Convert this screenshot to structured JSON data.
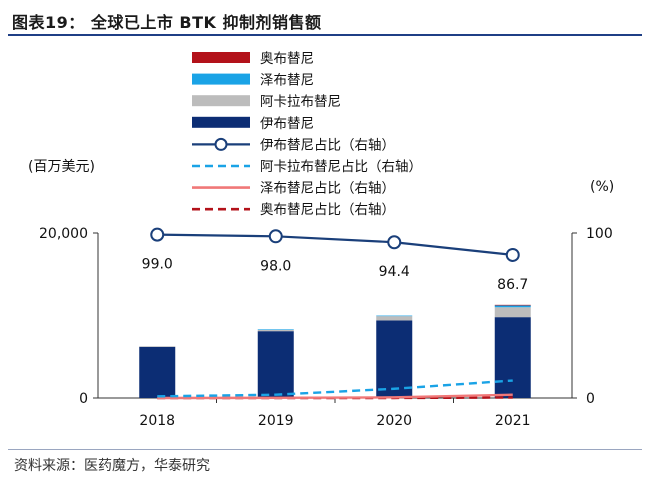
{
  "page": {
    "title": "图表19： 全球已上市 BTK 抑制剂销售额",
    "source": "资料来源：医药魔方，华泰研究"
  },
  "chart_data": {
    "type": "bar",
    "title": "全球已上市 BTK 抑制剂销售额",
    "categories": [
      "2018",
      "2019",
      "2020",
      "2021"
    ],
    "ylabel": "(百万美元)",
    "y2label": "(%)",
    "ylim": [
      0,
      20000
    ],
    "y2lim": [
      0,
      100
    ],
    "yticks": [
      "20,000",
      "0"
    ],
    "y2ticks": [
      "100",
      "0"
    ],
    "stacked": true,
    "series": [
      {
        "name": "伊布替尼",
        "axis": "left",
        "kind": "bar",
        "color": "#0c2d74",
        "values": [
          6200,
          8100,
          9400,
          9800
        ]
      },
      {
        "name": "阿卡拉布替尼",
        "axis": "left",
        "kind": "bar",
        "color": "#bcbcbc",
        "values": [
          60,
          160,
          520,
          1200
        ]
      },
      {
        "name": "泽布替尼",
        "axis": "left",
        "kind": "bar",
        "color": "#1aa3e6",
        "values": [
          0,
          5,
          40,
          220
        ]
      },
      {
        "name": "奥布替尼",
        "axis": "left",
        "kind": "bar",
        "color": "#b3121a",
        "values": [
          0,
          0,
          0,
          35
        ]
      },
      {
        "name": "伊布替尼占比（右轴）",
        "axis": "right",
        "kind": "line-marker",
        "color": "#1a3f7a",
        "values": [
          99.0,
          98.0,
          94.4,
          86.7
        ]
      },
      {
        "name": "阿卡拉布替尼占比（右轴）",
        "axis": "right",
        "kind": "dash",
        "color": "#1aa3e6",
        "values": [
          1.0,
          2.0,
          5.6,
          10.6
        ]
      },
      {
        "name": "泽布替尼占比（右轴）",
        "axis": "right",
        "kind": "line",
        "color": "#f07878",
        "values": [
          0,
          0.1,
          0.4,
          2.0
        ]
      },
      {
        "name": "奥布替尼占比（右轴）",
        "axis": "right",
        "kind": "dash",
        "color": "#b3121a",
        "values": [
          0,
          0,
          0,
          0.3
        ]
      }
    ],
    "data_labels": [
      "99.0",
      "98.0",
      "94.4",
      "86.7"
    ],
    "legend_order": [
      "奥布替尼",
      "泽布替尼",
      "阿卡拉布替尼",
      "伊布替尼",
      "伊布替尼占比（右轴）",
      "阿卡拉布替尼占比（右轴）",
      "泽布替尼占比（右轴）",
      "奥布替尼占比（右轴）"
    ]
  }
}
